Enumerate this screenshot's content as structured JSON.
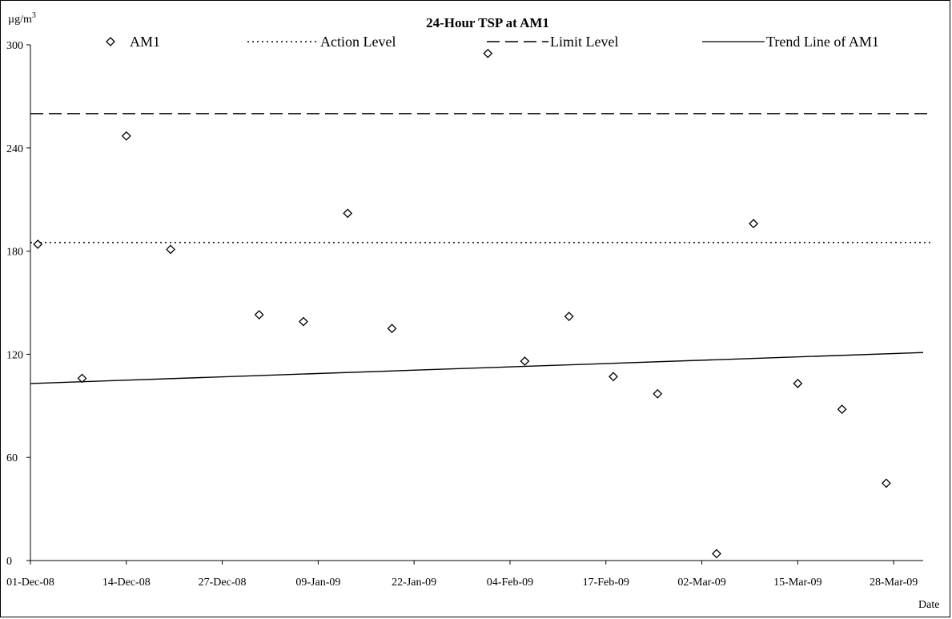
{
  "chart_data": {
    "type": "scatter",
    "title": "24-Hour TSP at AM1",
    "y_unit_label": "µg/m",
    "y_unit_sup": "3",
    "xlabel": "Date",
    "ylim": [
      0,
      300
    ],
    "yticks": [
      0,
      60,
      120,
      180,
      240,
      300
    ],
    "xlim": [
      "2008-12-01",
      "2009-04-01"
    ],
    "xticks": [
      "01-Dec-08",
      "14-Dec-08",
      "27-Dec-08",
      "09-Jan-09",
      "22-Jan-09",
      "04-Feb-09",
      "17-Feb-09",
      "02-Mar-09",
      "15-Mar-09",
      "28-Mar-09"
    ],
    "grid": false,
    "legend_position": "top",
    "series": [
      {
        "name": "AM1",
        "marker": "diamond",
        "points": [
          {
            "x": "2008-12-02",
            "y": 184
          },
          {
            "x": "2008-12-08",
            "y": 106
          },
          {
            "x": "2008-12-14",
            "y": 247
          },
          {
            "x": "2008-12-20",
            "y": 181
          },
          {
            "x": "2009-01-01",
            "y": 143
          },
          {
            "x": "2009-01-07",
            "y": 139
          },
          {
            "x": "2009-01-13",
            "y": 202
          },
          {
            "x": "2009-01-19",
            "y": 135
          },
          {
            "x": "2009-02-01",
            "y": 295
          },
          {
            "x": "2009-02-06",
            "y": 116
          },
          {
            "x": "2009-02-12",
            "y": 142
          },
          {
            "x": "2009-02-18",
            "y": 107
          },
          {
            "x": "2009-02-24",
            "y": 97
          },
          {
            "x": "2009-03-04",
            "y": 4
          },
          {
            "x": "2009-03-09",
            "y": 196
          },
          {
            "x": "2009-03-15",
            "y": 103
          },
          {
            "x": "2009-03-21",
            "y": 88
          },
          {
            "x": "2009-03-27",
            "y": 45
          }
        ]
      },
      {
        "name": "Action Level",
        "style": "dotted",
        "value": 185
      },
      {
        "name": "Limit Level",
        "style": "dashed",
        "value": 260
      },
      {
        "name": "Trend Line of AM1",
        "style": "solid",
        "from": {
          "x": "2008-12-01",
          "y": 103
        },
        "to": {
          "x": "2009-04-01",
          "y": 121
        }
      }
    ]
  }
}
